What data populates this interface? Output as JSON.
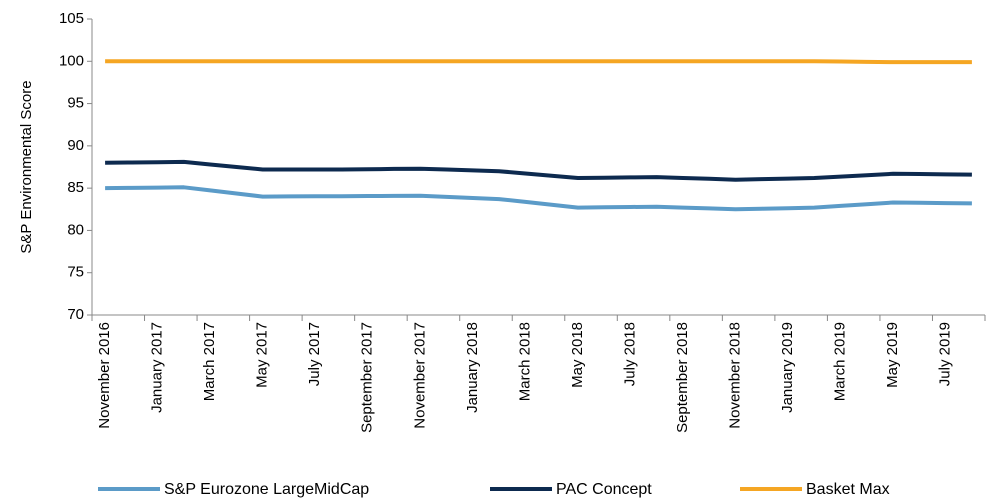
{
  "chart_data": {
    "type": "line",
    "y_label": "S&P Environmental Score",
    "categories": [
      "November 2016",
      null,
      "January 2017",
      null,
      "March 2017",
      null,
      "May 2017",
      null,
      "July 2017",
      null,
      "September 2017",
      null,
      "November 2017",
      null,
      "January 2018",
      null,
      "March 2018",
      null,
      "May 2018",
      null,
      "July 2018",
      null,
      "September 2018",
      null,
      "November 2018",
      null,
      "January 2019",
      null,
      "March 2019",
      null,
      "May 2019",
      null,
      "July 2019",
      null
    ],
    "series": [
      {
        "name": "S&P Eurozone LargeMidCap",
        "color": "#5b9bc8",
        "values": [
          85.0,
          85.03,
          85.07,
          85.1,
          84.73,
          84.37,
          84.0,
          84.02,
          84.03,
          84.05,
          84.07,
          84.08,
          84.1,
          83.97,
          83.83,
          83.7,
          83.37,
          83.03,
          82.7,
          82.73,
          82.77,
          82.8,
          82.7,
          82.6,
          82.5,
          82.57,
          82.63,
          82.7,
          82.9,
          83.1,
          83.3,
          83.27,
          83.23,
          83.2
        ]
      },
      {
        "name": "PAC Concept",
        "color": "#0d2a4f",
        "values": [
          88.0,
          88.03,
          88.07,
          88.1,
          87.8,
          87.5,
          87.2,
          87.2,
          87.2,
          87.2,
          87.23,
          87.27,
          87.3,
          87.2,
          87.1,
          87.0,
          86.73,
          86.47,
          86.2,
          86.23,
          86.27,
          86.3,
          86.2,
          86.1,
          86.0,
          86.07,
          86.13,
          86.2,
          86.37,
          86.53,
          86.7,
          86.67,
          86.63,
          86.6
        ]
      },
      {
        "name": "Basket Max",
        "color": "#f5a623",
        "values": [
          100,
          100,
          100,
          100,
          100,
          100,
          100,
          100,
          100,
          100,
          100,
          100,
          100,
          100,
          100,
          100,
          100,
          100,
          100,
          100,
          100,
          100,
          100,
          100,
          100,
          100,
          100,
          100,
          99.97,
          99.93,
          99.9,
          99.9,
          99.9,
          99.9
        ]
      }
    ],
    "ylim": [
      70,
      105
    ],
    "yticks": [
      70,
      75,
      80,
      85,
      90,
      95,
      100,
      105
    ],
    "grid": false,
    "legend": "bottom"
  }
}
